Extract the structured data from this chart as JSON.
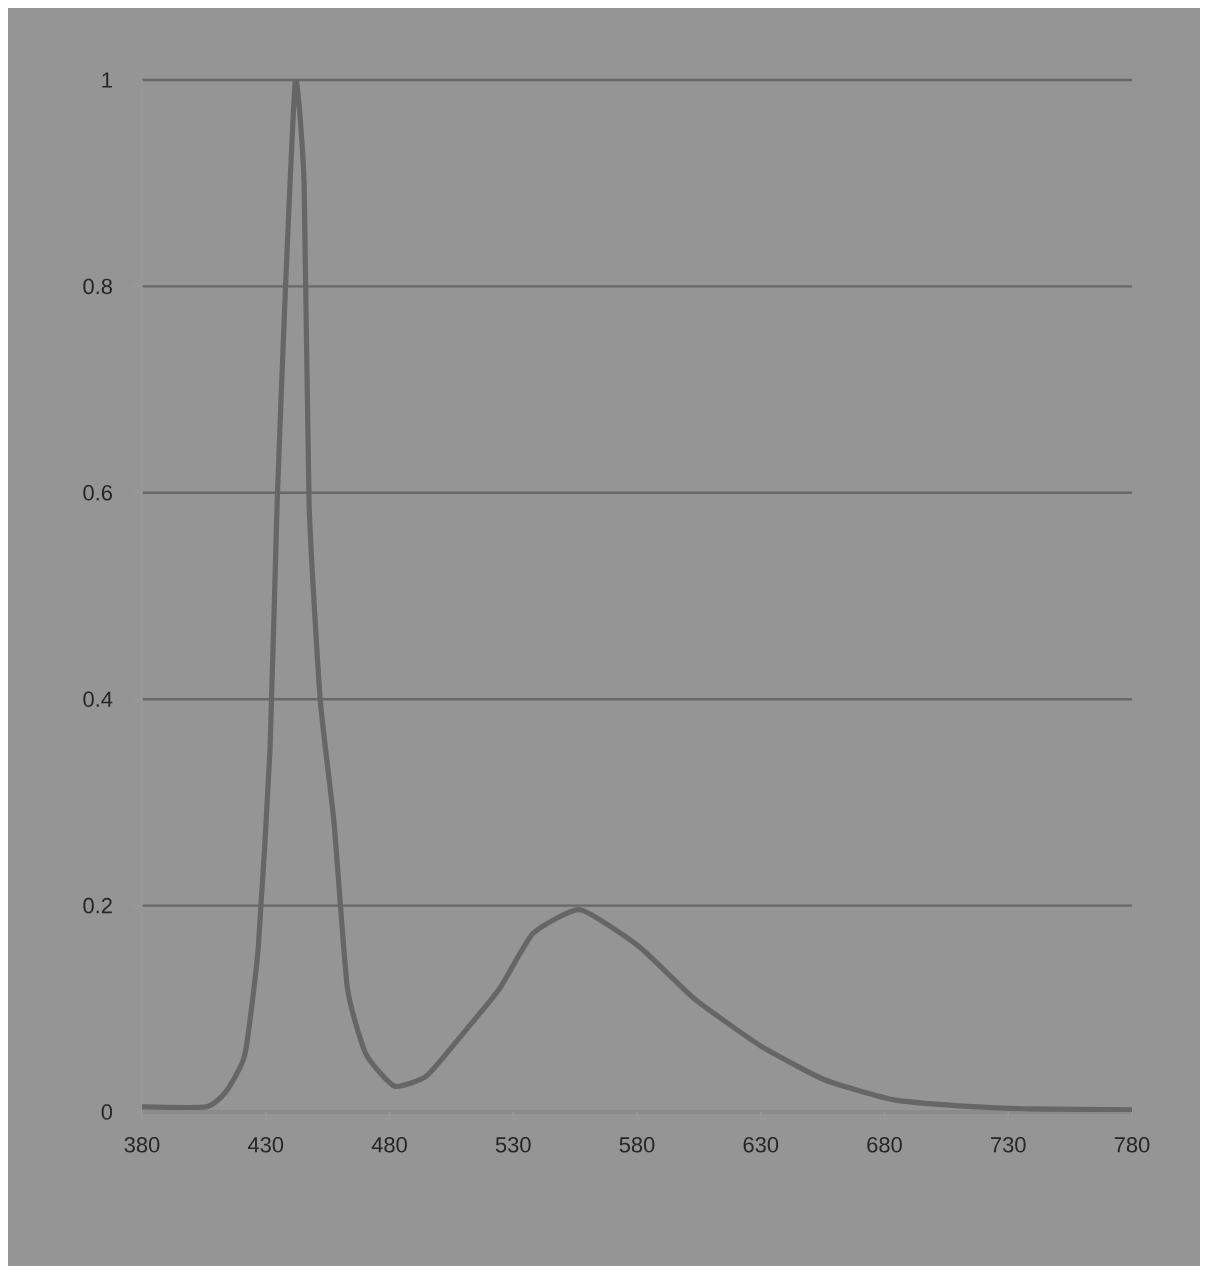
{
  "chart_data": {
    "type": "line",
    "x": [
      380,
      406,
      414,
      421.6,
      427,
      431.7,
      434.6,
      438,
      442,
      445.5,
      447.5,
      452,
      457.6,
      463,
      470.5,
      482,
      495,
      509,
      524.6,
      538,
      557,
      581,
      603,
      630,
      656,
      683.5,
      710,
      738.6,
      780
    ],
    "series": [
      {
        "color": "#666666",
        "values": [
          0.005,
          0.005,
          0.02,
          0.056,
          0.16,
          0.35,
          0.59,
          0.8,
          1.0,
          0.9,
          0.59,
          0.4,
          0.28,
          0.12,
          0.056,
          0.025,
          0.035,
          0.074,
          0.12,
          0.173,
          0.196,
          0.16,
          0.11,
          0.064,
          0.031,
          0.012,
          0.006,
          0.003,
          0.002
        ]
      }
    ],
    "xlim": [
      380,
      780
    ],
    "ylim": [
      0,
      1
    ],
    "xticks": [
      380,
      430,
      480,
      530,
      580,
      630,
      680,
      730,
      780
    ],
    "yticks": [
      0,
      0.2,
      0.4,
      0.6,
      0.8,
      1
    ],
    "grid": "y",
    "marker": "none",
    "line_style": "solid"
  }
}
